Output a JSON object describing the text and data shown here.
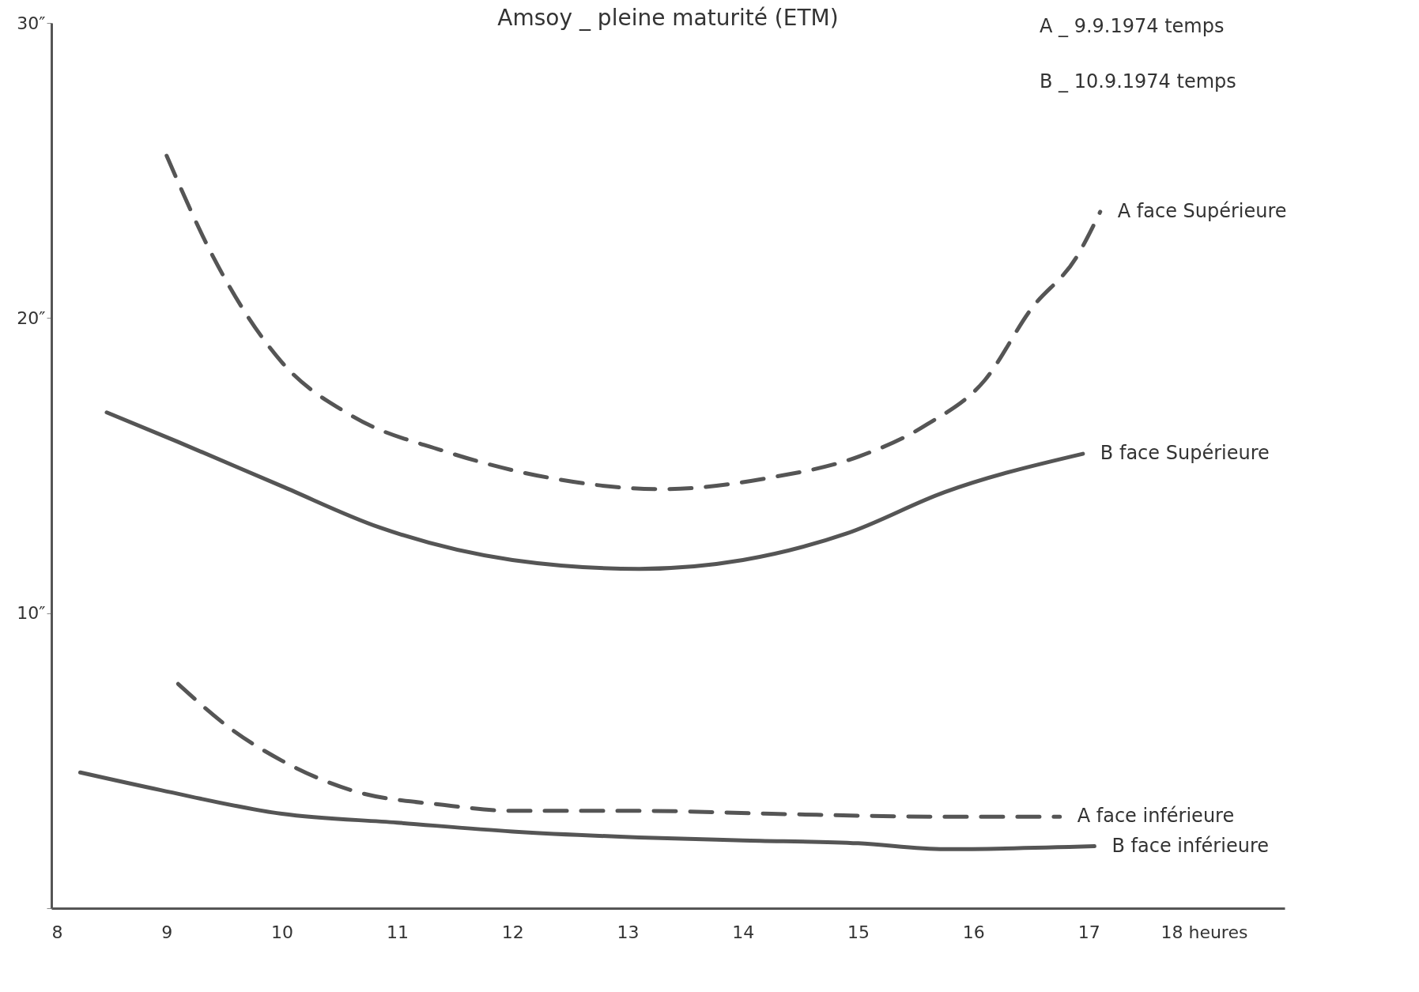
{
  "chart_data": {
    "type": "line",
    "title": "Amsoy _ pleine maturité  (ETM)",
    "annotations": [
      "A _ 9.9.1974 temps",
      "B _ 10.9.1974 temps"
    ],
    "series": [
      {
        "name": "A face Supérieure",
        "color": "#555555",
        "line_style": "dashed",
        "x": [
          9.0,
          9.4,
          10.0,
          10.6,
          11.4,
          12.3,
          13.3,
          14.25,
          15.0,
          15.6,
          16.1,
          16.5,
          16.9,
          17.1
        ],
        "values": [
          25.5,
          22.1,
          18.5,
          16.7,
          15.5,
          14.6,
          14.2,
          14.6,
          15.3,
          16.4,
          17.9,
          20.3,
          22.1,
          23.6
        ]
      },
      {
        "name": "B face Supérieure",
        "color": "#555555",
        "line_style": "solid",
        "x": [
          8.48,
          9.1,
          10.0,
          10.85,
          12.0,
          13.1,
          14.0,
          14.9,
          15.75,
          16.95
        ],
        "values": [
          16.8,
          15.8,
          14.3,
          12.9,
          11.8,
          11.5,
          11.8,
          12.7,
          14.1,
          15.4
        ]
      },
      {
        "name": "A face inférieure",
        "color": "#555555",
        "line_style": "dashed",
        "x": [
          9.1,
          9.55,
          10.0,
          10.6,
          11.4,
          12.0,
          13.1,
          14.25,
          15.75,
          16.75
        ],
        "values": [
          7.6,
          6.1,
          5.0,
          4.0,
          3.5,
          3.3,
          3.3,
          3.2,
          3.1,
          3.1
        ]
      },
      {
        "name": "B face inférieure",
        "color": "#555555",
        "line_style": "solid",
        "x": [
          8.25,
          8.95,
          10.0,
          11.0,
          12.0,
          13.1,
          14.0,
          15.0,
          15.75,
          17.05
        ],
        "values": [
          4.6,
          4.0,
          3.2,
          2.9,
          2.6,
          2.4,
          2.3,
          2.2,
          2.0,
          2.1
        ]
      }
    ],
    "xlim": [
      8,
      18.7
    ],
    "xticks": [
      8,
      9,
      10,
      11,
      12,
      13,
      14,
      15,
      16,
      17,
      {
        "value": 18,
        "label": "18 heures"
      }
    ],
    "ylim": [
      0,
      30
    ],
    "yticks": [
      {
        "value": 0,
        "label": null
      },
      {
        "value": 10,
        "label": "10″"
      },
      {
        "value": 20,
        "label": "20″"
      },
      {
        "value": 30,
        "label": "30″"
      }
    ],
    "grid": false,
    "legend": false,
    "marker": "none"
  }
}
